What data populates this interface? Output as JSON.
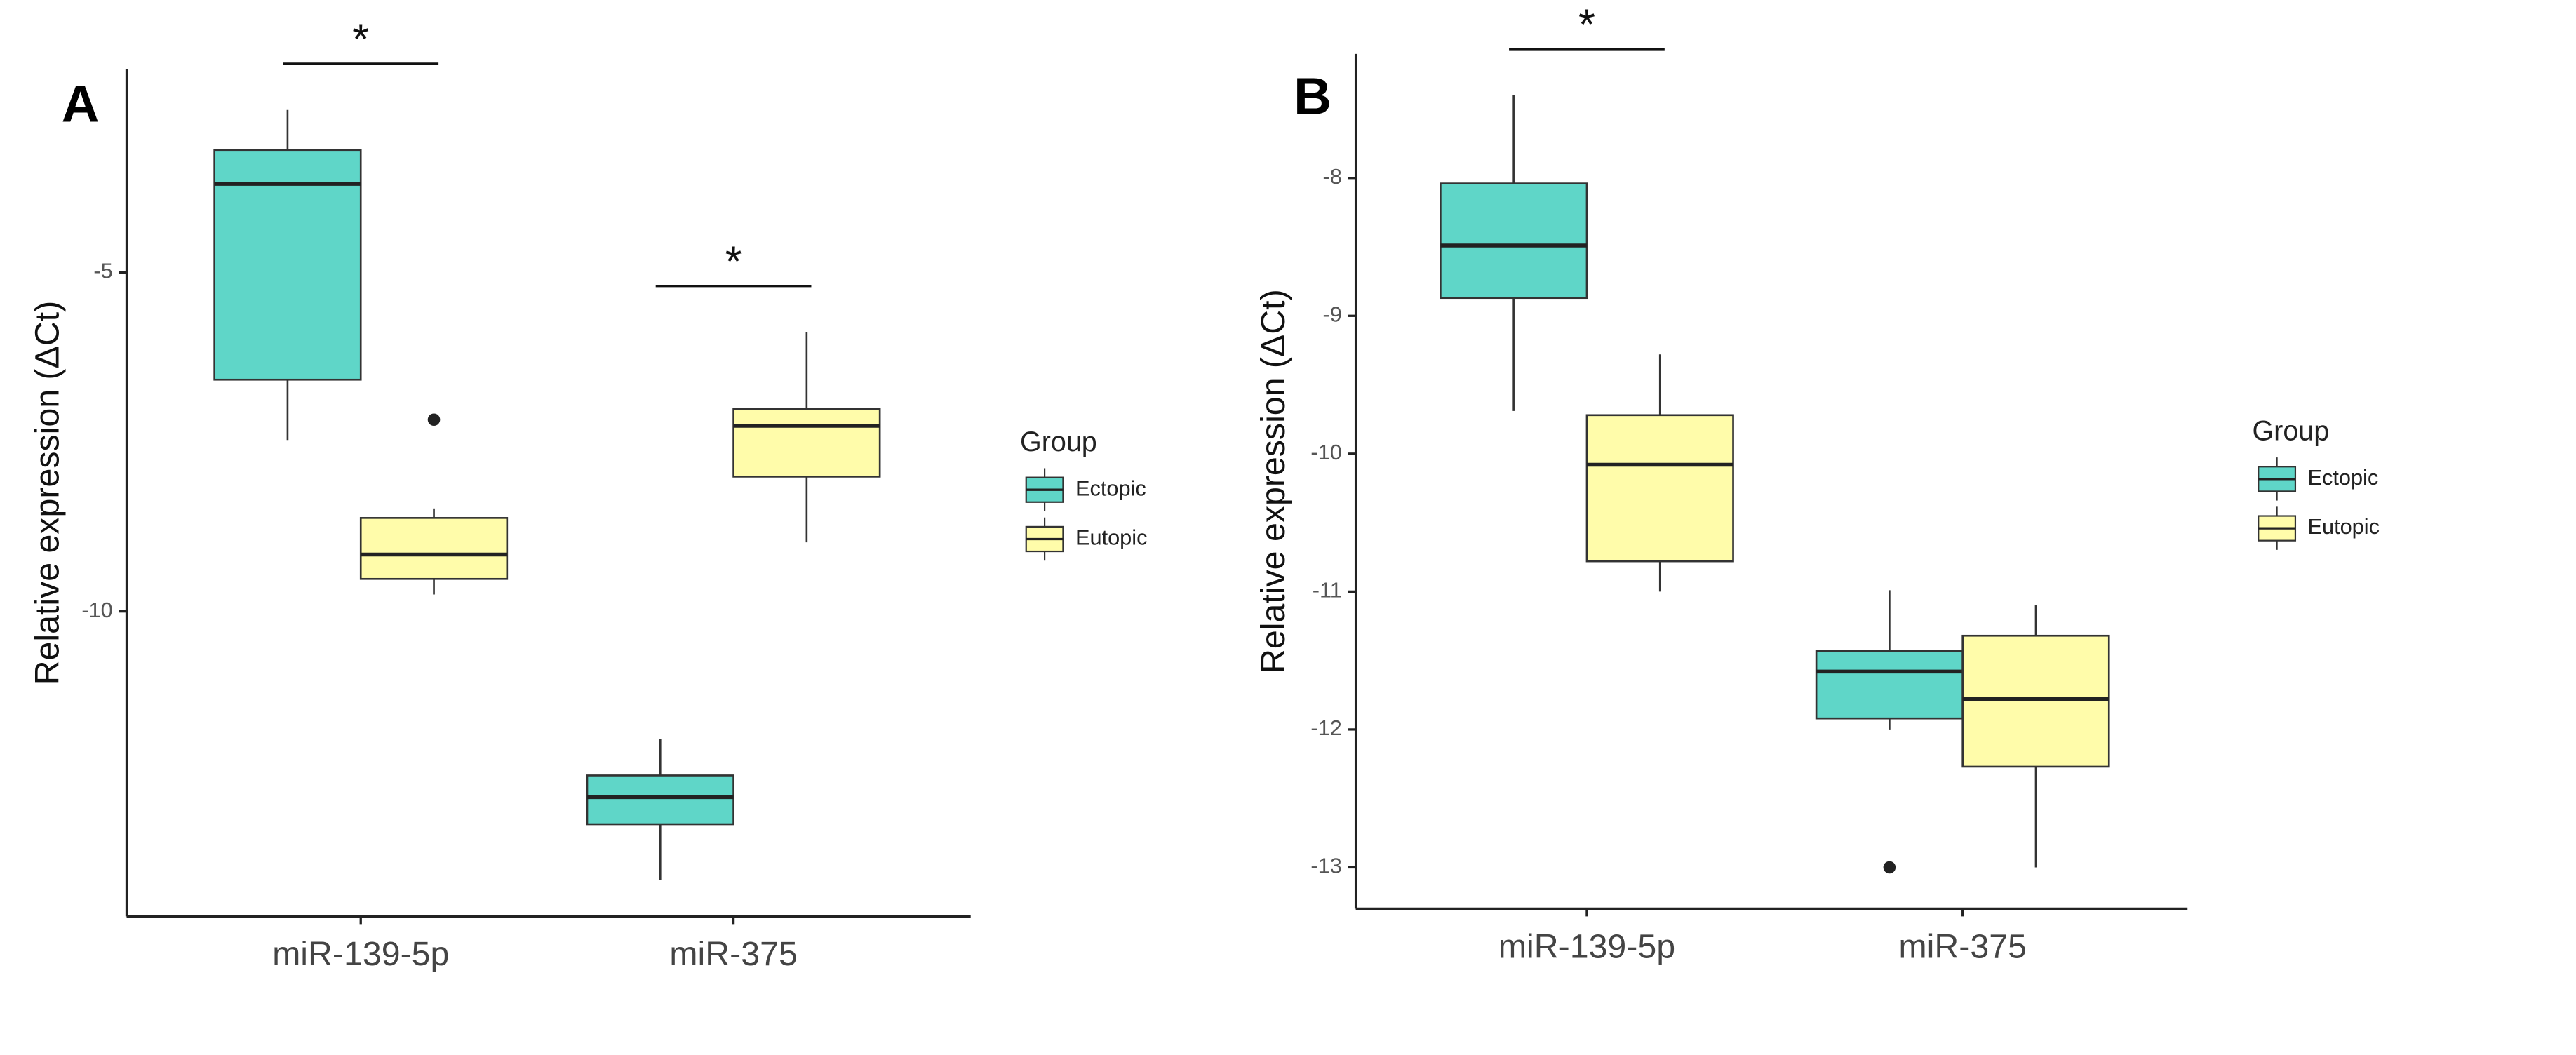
{
  "chart_data": [
    {
      "type": "box",
      "title": "A",
      "ylabel": "Relative expression (ΔCt)",
      "categories": [
        "miR-139-5p",
        "miR-375"
      ],
      "legend_title": "Group",
      "legend_position": "right",
      "grid": false,
      "ylim": [
        -14.5,
        -2.0
      ],
      "yticks": [
        -5,
        -10
      ],
      "series": [
        {
          "name": "Ectopic",
          "color": "#5fd6c8",
          "min": [
            -7.47,
            -13.96
          ],
          "q1": [
            -6.58,
            -13.14
          ],
          "median": [
            -3.69,
            -12.74
          ],
          "q3": [
            -3.19,
            -12.42
          ],
          "max": [
            -2.6,
            -11.88
          ],
          "outliers": [
            [],
            []
          ]
        },
        {
          "name": "Eutopic",
          "color": "#fffcaa",
          "min": [
            -9.75,
            -8.98
          ],
          "q1": [
            -9.52,
            -8.01
          ],
          "median": [
            -9.16,
            -7.26
          ],
          "q3": [
            -8.62,
            -7.01
          ],
          "max": [
            -8.48,
            -5.88
          ],
          "outliers": [
            [
              -7.17
            ],
            []
          ]
        }
      ],
      "annotations": [
        {
          "text": "*",
          "category": "miR-139-5p"
        },
        {
          "text": "*",
          "category": "miR-375"
        }
      ]
    },
    {
      "type": "box",
      "title": "B",
      "ylabel": "Relative expression (ΔCt)",
      "categories": [
        "miR-139-5p",
        "miR-375"
      ],
      "legend_title": "Group",
      "legend_position": "right",
      "grid": false,
      "ylim": [
        -13.3,
        -7.1
      ],
      "yticks": [
        -8,
        -9,
        -10,
        -11,
        -12,
        -13
      ],
      "series": [
        {
          "name": "Ectopic",
          "color": "#5fd6c8",
          "min": [
            -9.69,
            -12.0
          ],
          "q1": [
            -8.87,
            -11.92
          ],
          "median": [
            -8.49,
            -11.58
          ],
          "q3": [
            -8.04,
            -11.43
          ],
          "max": [
            -7.4,
            -10.99
          ],
          "outliers": [
            [],
            [
              -13.0
            ]
          ]
        },
        {
          "name": "Eutopic",
          "color": "#fffcaa",
          "min": [
            -11.0,
            -13.0
          ],
          "q1": [
            -10.78,
            -12.27
          ],
          "median": [
            -10.08,
            -11.78
          ],
          "q3": [
            -9.72,
            -11.32
          ],
          "max": [
            -9.28,
            -11.1
          ],
          "outliers": [
            [],
            []
          ]
        }
      ],
      "annotations": [
        {
          "text": "*",
          "category": "miR-139-5p"
        }
      ]
    }
  ]
}
